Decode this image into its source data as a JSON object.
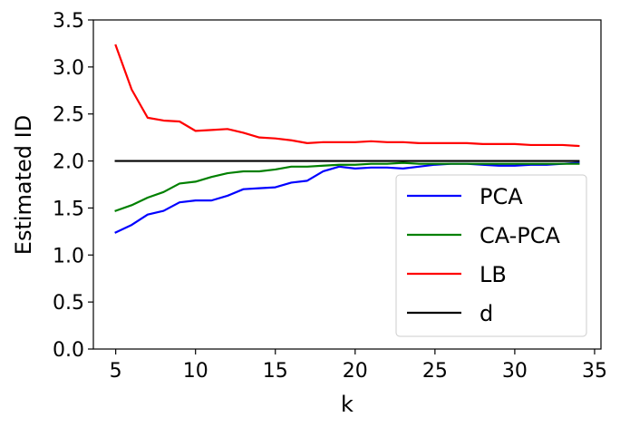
{
  "chart_data": {
    "type": "line",
    "xlabel": "k",
    "ylabel": "Estimated ID",
    "xlim": [
      3.6,
      35.4
    ],
    "ylim": [
      0.0,
      3.5
    ],
    "x_ticks": [
      5,
      10,
      15,
      20,
      25,
      30,
      35
    ],
    "y_ticks": [
      0.0,
      0.5,
      1.0,
      1.5,
      2.0,
      2.5,
      3.0,
      3.5
    ],
    "x_tick_labels": [
      "5",
      "10",
      "15",
      "20",
      "25",
      "30",
      "35"
    ],
    "y_tick_labels": [
      "0.0",
      "0.5",
      "1.0",
      "1.5",
      "2.0",
      "2.5",
      "3.0",
      "3.5"
    ],
    "grid": false,
    "legend_position": "lower-right",
    "x": [
      5,
      6,
      7,
      8,
      9,
      10,
      11,
      12,
      13,
      14,
      15,
      16,
      17,
      18,
      19,
      20,
      21,
      22,
      23,
      24,
      25,
      26,
      27,
      28,
      29,
      30,
      31,
      32,
      33,
      34
    ],
    "series": [
      {
        "name": "PCA",
        "color": "#0000ff",
        "values": [
          1.24,
          1.32,
          1.43,
          1.47,
          1.56,
          1.58,
          1.58,
          1.63,
          1.7,
          1.71,
          1.72,
          1.77,
          1.79,
          1.89,
          1.94,
          1.92,
          1.93,
          1.93,
          1.92,
          1.94,
          1.96,
          1.97,
          1.97,
          1.96,
          1.95,
          1.95,
          1.96,
          1.96,
          1.97,
          1.98
        ]
      },
      {
        "name": "CA-PCA",
        "color": "#008000",
        "values": [
          1.47,
          1.53,
          1.61,
          1.67,
          1.76,
          1.78,
          1.83,
          1.87,
          1.89,
          1.89,
          1.91,
          1.94,
          1.94,
          1.95,
          1.96,
          1.96,
          1.97,
          1.97,
          1.98,
          1.97,
          1.97,
          1.97,
          1.97,
          1.97,
          1.97,
          1.97,
          1.97,
          1.97,
          1.97,
          1.97
        ]
      },
      {
        "name": "LB",
        "color": "#ff0000",
        "values": [
          3.23,
          2.76,
          2.46,
          2.43,
          2.42,
          2.32,
          2.33,
          2.34,
          2.3,
          2.25,
          2.24,
          2.22,
          2.19,
          2.2,
          2.2,
          2.2,
          2.21,
          2.2,
          2.2,
          2.19,
          2.19,
          2.19,
          2.19,
          2.18,
          2.18,
          2.18,
          2.17,
          2.17,
          2.17,
          2.16
        ]
      },
      {
        "name": "d",
        "color": "#000000",
        "values": [
          2.0,
          2.0,
          2.0,
          2.0,
          2.0,
          2.0,
          2.0,
          2.0,
          2.0,
          2.0,
          2.0,
          2.0,
          2.0,
          2.0,
          2.0,
          2.0,
          2.0,
          2.0,
          2.0,
          2.0,
          2.0,
          2.0,
          2.0,
          2.0,
          2.0,
          2.0,
          2.0,
          2.0,
          2.0,
          2.0
        ]
      }
    ]
  }
}
